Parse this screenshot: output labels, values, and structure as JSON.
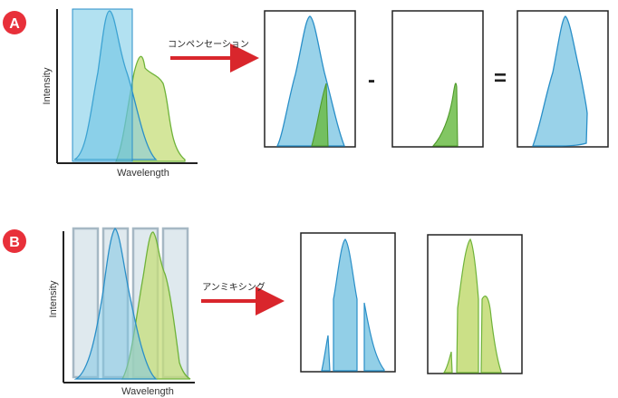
{
  "panel_a": {
    "badge": "A",
    "ylabel": "Intensity",
    "xlabel": "Wavelength",
    "arrow_label": "コンペンセーション",
    "minus_sign": "-",
    "equals_sign": "="
  },
  "panel_b": {
    "badge": "B",
    "ylabel": "Intensity",
    "xlabel": "Wavelength",
    "arrow_label": "アンミキシング"
  },
  "colors": {
    "badge": "#e8303a",
    "arrow": "#d9262c",
    "blue_fill": "#7fc7e3",
    "blue_stroke": "#2a8fc8",
    "green_fill": "#c5dd7a",
    "green_stroke": "#6fb33a",
    "dark_green_fill": "#6cbc48",
    "filter_box_a": "#55bde0",
    "filter_box_b": "#d7e3ea"
  }
}
